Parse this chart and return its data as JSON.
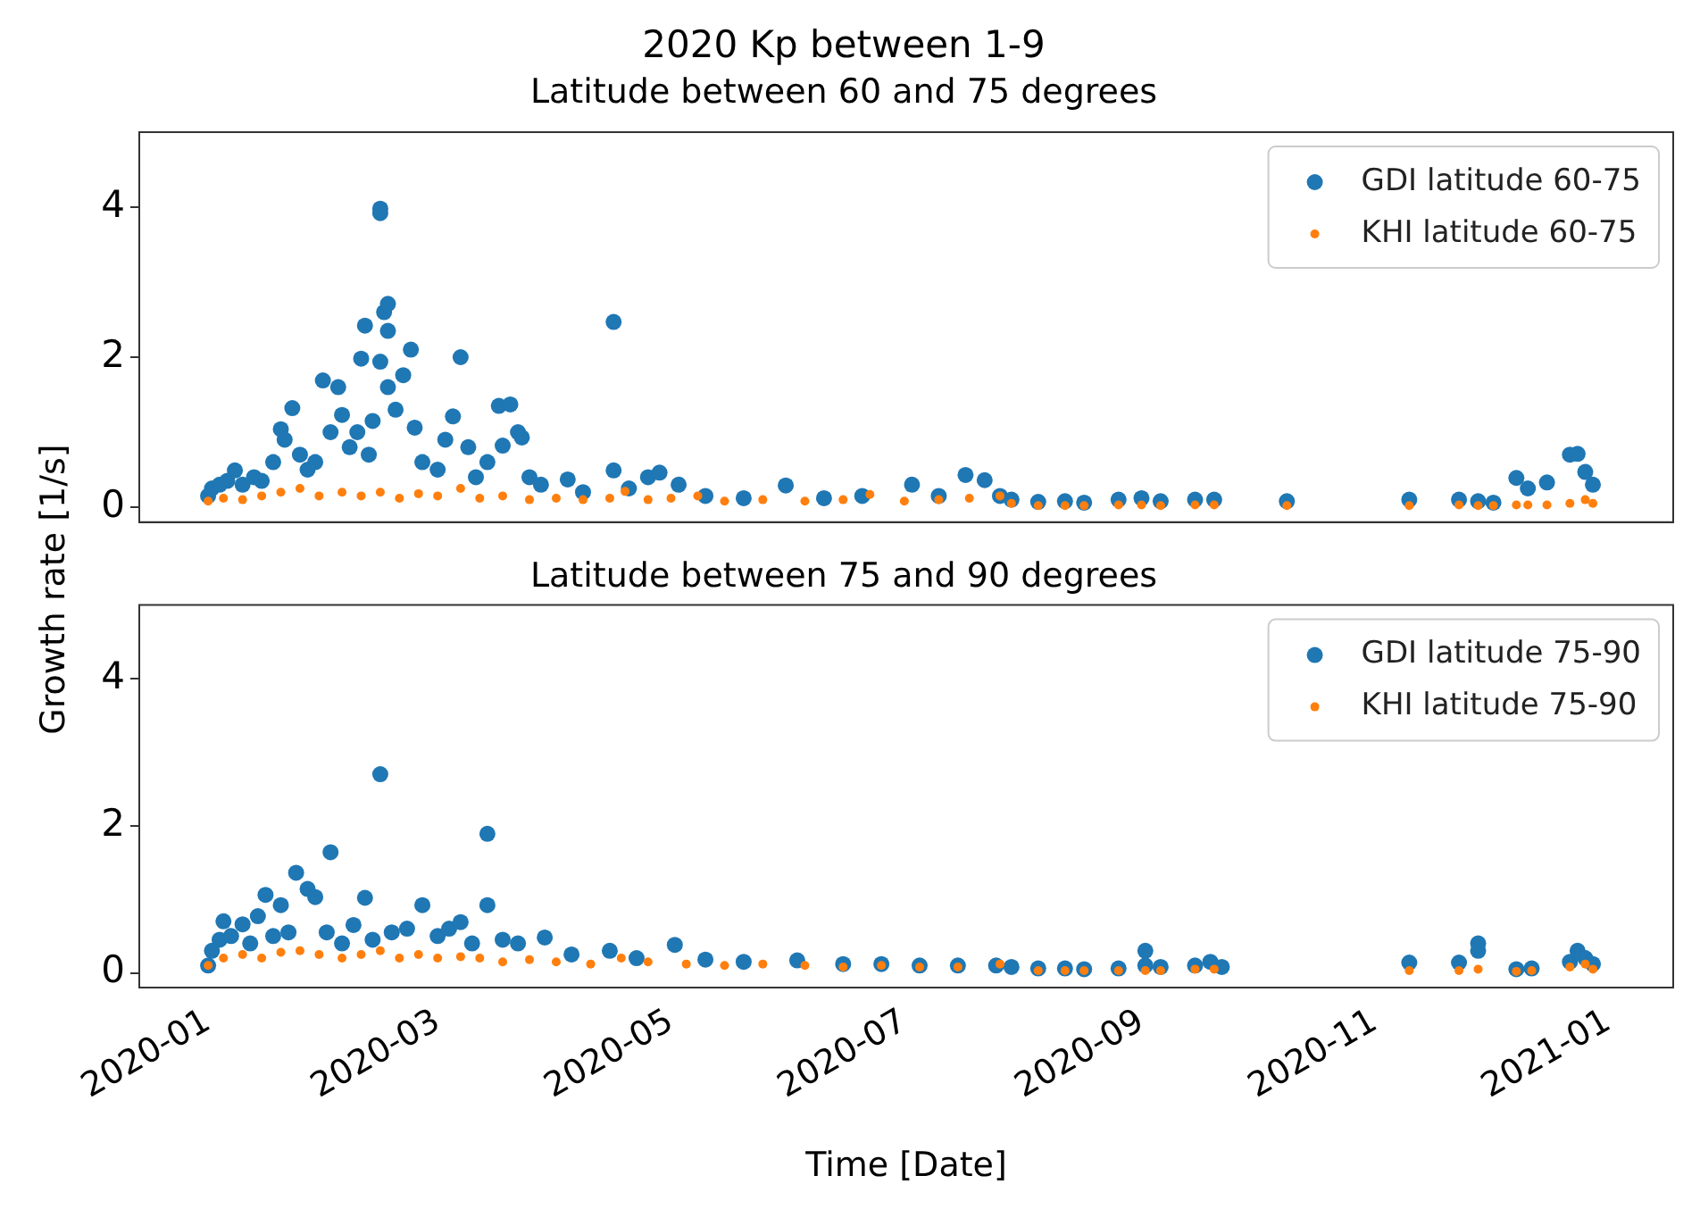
{
  "chart_data": [
    {
      "type": "scatter",
      "title": "2020 Kp between 1-9",
      "subtitle": "Latitude between 60 and 75 degrees",
      "ylabel": "Growth rate [1/s]",
      "xlim": [
        "2019-12-14",
        "2021-01-18"
      ],
      "xticks": [
        "2020-01",
        "2020-03",
        "2020-05",
        "2020-07",
        "2020-09",
        "2020-11",
        "2021-01"
      ],
      "ylim": [
        -0.2,
        5
      ],
      "yticks": [
        0,
        2,
        4
      ],
      "tick_labels": "y",
      "grid": false,
      "legend": "top right",
      "marker": "circle",
      "series": [
        {
          "name": "GDI latitude 60-75",
          "color": "#1f77b4",
          "x": [
            "2020-01-01",
            "2020-01-02",
            "2020-01-04",
            "2020-01-06",
            "2020-01-08",
            "2020-01-10",
            "2020-01-13",
            "2020-01-15",
            "2020-01-18",
            "2020-01-20",
            "2020-01-21",
            "2020-01-23",
            "2020-01-25",
            "2020-01-27",
            "2020-01-29",
            "2020-01-31",
            "2020-02-02",
            "2020-02-04",
            "2020-02-05",
            "2020-02-07",
            "2020-02-09",
            "2020-02-10",
            "2020-02-11",
            "2020-02-12",
            "2020-02-13",
            "2020-02-15",
            "2020-02-15",
            "2020-02-15",
            "2020-02-16",
            "2020-02-17",
            "2020-02-17",
            "2020-02-17",
            "2020-02-19",
            "2020-02-21",
            "2020-02-23",
            "2020-02-24",
            "2020-02-26",
            "2020-03-01",
            "2020-03-03",
            "2020-03-05",
            "2020-03-07",
            "2020-03-09",
            "2020-03-11",
            "2020-03-14",
            "2020-03-17",
            "2020-03-18",
            "2020-03-20",
            "2020-03-22",
            "2020-03-23",
            "2020-03-25",
            "2020-03-28",
            "2020-04-04",
            "2020-04-08",
            "2020-04-16",
            "2020-04-16",
            "2020-04-20",
            "2020-04-25",
            "2020-04-28",
            "2020-05-03",
            "2020-05-10",
            "2020-05-20",
            "2020-05-31",
            "2020-06-10",
            "2020-06-20",
            "2020-07-03",
            "2020-07-10",
            "2020-07-17",
            "2020-07-22",
            "2020-07-26",
            "2020-07-29",
            "2020-08-05",
            "2020-08-12",
            "2020-08-17",
            "2020-08-26",
            "2020-09-01",
            "2020-09-06",
            "2020-09-15",
            "2020-09-20",
            "2020-10-09",
            "2020-11-10",
            "2020-11-23",
            "2020-11-28",
            "2020-12-02",
            "2020-12-08",
            "2020-12-11",
            "2020-12-16",
            "2020-12-22",
            "2020-12-24",
            "2020-12-26",
            "2020-12-28"
          ],
          "values": [
            0.15,
            0.25,
            0.3,
            0.35,
            0.49,
            0.3,
            0.4,
            0.35,
            0.6,
            1.04,
            0.9,
            1.32,
            0.7,
            0.5,
            0.6,
            1.69,
            1.0,
            1.6,
            1.23,
            0.8,
            1.0,
            1.98,
            2.42,
            0.7,
            1.15,
            3.98,
            3.92,
            1.94,
            2.6,
            2.71,
            2.35,
            1.6,
            1.3,
            1.76,
            2.1,
            1.06,
            0.6,
            0.5,
            0.9,
            1.21,
            2.0,
            0.8,
            0.4,
            0.6,
            1.35,
            0.82,
            1.37,
            1.0,
            0.93,
            0.4,
            0.3,
            0.37,
            0.2,
            2.47,
            0.49,
            0.25,
            0.4,
            0.46,
            0.3,
            0.15,
            0.12,
            0.29,
            0.12,
            0.15,
            0.3,
            0.15,
            0.43,
            0.36,
            0.15,
            0.1,
            0.07,
            0.08,
            0.06,
            0.1,
            0.12,
            0.08,
            0.1,
            0.1,
            0.08,
            0.1,
            0.1,
            0.08,
            0.06,
            0.39,
            0.25,
            0.33,
            0.7,
            0.71,
            0.47,
            0.3
          ]
        },
        {
          "name": "KHI latitude 60-75",
          "color": "#ff7f0e",
          "x": [
            "2020-01-01",
            "2020-01-05",
            "2020-01-10",
            "2020-01-15",
            "2020-01-20",
            "2020-01-25",
            "2020-01-30",
            "2020-02-05",
            "2020-02-10",
            "2020-02-15",
            "2020-02-20",
            "2020-02-25",
            "2020-03-01",
            "2020-03-07",
            "2020-03-12",
            "2020-03-18",
            "2020-03-25",
            "2020-04-01",
            "2020-04-08",
            "2020-04-15",
            "2020-04-19",
            "2020-04-25",
            "2020-05-01",
            "2020-05-08",
            "2020-05-15",
            "2020-05-25",
            "2020-06-05",
            "2020-06-15",
            "2020-06-22",
            "2020-07-01",
            "2020-07-10",
            "2020-07-18",
            "2020-07-26",
            "2020-07-29",
            "2020-08-05",
            "2020-08-12",
            "2020-08-17",
            "2020-08-26",
            "2020-09-01",
            "2020-09-06",
            "2020-09-15",
            "2020-09-20",
            "2020-10-09",
            "2020-11-10",
            "2020-11-23",
            "2020-11-28",
            "2020-12-02",
            "2020-12-08",
            "2020-12-11",
            "2020-12-16",
            "2020-12-22",
            "2020-12-26",
            "2020-12-28"
          ],
          "values": [
            0.08,
            0.12,
            0.1,
            0.15,
            0.2,
            0.25,
            0.15,
            0.2,
            0.15,
            0.2,
            0.12,
            0.18,
            0.15,
            0.25,
            0.12,
            0.15,
            0.1,
            0.12,
            0.1,
            0.12,
            0.21,
            0.1,
            0.12,
            0.15,
            0.08,
            0.1,
            0.08,
            0.1,
            0.17,
            0.08,
            0.1,
            0.12,
            0.15,
            0.05,
            0.02,
            0.02,
            0.02,
            0.03,
            0.03,
            0.02,
            0.03,
            0.03,
            0.02,
            0.02,
            0.03,
            0.02,
            0.02,
            0.03,
            0.03,
            0.03,
            0.05,
            0.1,
            0.05
          ]
        }
      ]
    },
    {
      "type": "scatter",
      "title": "Latitude between 75 and 90 degrees",
      "xlabel": "Time [Date]",
      "xlim": [
        "2019-12-14",
        "2021-01-18"
      ],
      "xticks": [
        "2020-01",
        "2020-03",
        "2020-05",
        "2020-07",
        "2020-09",
        "2020-11",
        "2021-01"
      ],
      "ylim": [
        -0.2,
        5
      ],
      "yticks": [
        0,
        2,
        4
      ],
      "grid": false,
      "legend": "top right",
      "marker": "circle",
      "series": [
        {
          "name": "GDI latitude 75-90",
          "color": "#1f77b4",
          "x": [
            "2020-01-01",
            "2020-01-02",
            "2020-01-04",
            "2020-01-05",
            "2020-01-07",
            "2020-01-10",
            "2020-01-12",
            "2020-01-14",
            "2020-01-16",
            "2020-01-18",
            "2020-01-20",
            "2020-01-22",
            "2020-01-24",
            "2020-01-27",
            "2020-01-29",
            "2020-02-01",
            "2020-02-02",
            "2020-02-05",
            "2020-02-08",
            "2020-02-11",
            "2020-02-13",
            "2020-02-15",
            "2020-02-18",
            "2020-02-22",
            "2020-02-26",
            "2020-03-01",
            "2020-03-04",
            "2020-03-07",
            "2020-03-10",
            "2020-03-14",
            "2020-03-14",
            "2020-03-18",
            "2020-03-22",
            "2020-03-29",
            "2020-04-05",
            "2020-04-15",
            "2020-04-22",
            "2020-05-02",
            "2020-05-10",
            "2020-05-20",
            "2020-06-03",
            "2020-06-15",
            "2020-06-25",
            "2020-07-05",
            "2020-07-15",
            "2020-07-25",
            "2020-07-29",
            "2020-08-05",
            "2020-08-12",
            "2020-08-17",
            "2020-08-26",
            "2020-09-02",
            "2020-09-02",
            "2020-09-06",
            "2020-09-15",
            "2020-09-19",
            "2020-09-22",
            "2020-11-10",
            "2020-11-23",
            "2020-11-28",
            "2020-11-28",
            "2020-12-08",
            "2020-12-12",
            "2020-12-22",
            "2020-12-24",
            "2020-12-26",
            "2020-12-28"
          ],
          "values": [
            0.1,
            0.3,
            0.45,
            0.7,
            0.5,
            0.66,
            0.4,
            0.77,
            1.06,
            0.5,
            0.92,
            0.55,
            1.36,
            1.14,
            1.03,
            0.55,
            1.64,
            0.4,
            0.65,
            1.02,
            0.45,
            2.7,
            0.55,
            0.6,
            0.92,
            0.5,
            0.6,
            0.69,
            0.4,
            1.89,
            0.92,
            0.45,
            0.4,
            0.48,
            0.25,
            0.3,
            0.2,
            0.38,
            0.18,
            0.15,
            0.17,
            0.12,
            0.12,
            0.1,
            0.1,
            0.1,
            0.08,
            0.06,
            0.06,
            0.05,
            0.06,
            0.3,
            0.1,
            0.08,
            0.1,
            0.15,
            0.08,
            0.14,
            0.14,
            0.4,
            0.3,
            0.05,
            0.06,
            0.15,
            0.3,
            0.2,
            0.12
          ]
        },
        {
          "name": "KHI latitude 75-90",
          "color": "#ff7f0e",
          "x": [
            "2020-01-01",
            "2020-01-05",
            "2020-01-10",
            "2020-01-15",
            "2020-01-20",
            "2020-01-25",
            "2020-01-30",
            "2020-02-05",
            "2020-02-10",
            "2020-02-15",
            "2020-02-20",
            "2020-02-25",
            "2020-03-01",
            "2020-03-07",
            "2020-03-12",
            "2020-03-18",
            "2020-03-25",
            "2020-04-01",
            "2020-04-10",
            "2020-04-18",
            "2020-04-25",
            "2020-05-05",
            "2020-05-15",
            "2020-05-25",
            "2020-06-05",
            "2020-06-15",
            "2020-06-25",
            "2020-07-05",
            "2020-07-15",
            "2020-07-26",
            "2020-08-05",
            "2020-08-12",
            "2020-08-17",
            "2020-08-26",
            "2020-09-02",
            "2020-09-06",
            "2020-09-15",
            "2020-09-20",
            "2020-11-10",
            "2020-11-23",
            "2020-11-28",
            "2020-12-08",
            "2020-12-12",
            "2020-12-22",
            "2020-12-26",
            "2020-12-28"
          ],
          "values": [
            0.1,
            0.2,
            0.25,
            0.2,
            0.28,
            0.3,
            0.25,
            0.2,
            0.25,
            0.3,
            0.2,
            0.25,
            0.2,
            0.22,
            0.2,
            0.15,
            0.18,
            0.15,
            0.12,
            0.2,
            0.15,
            0.12,
            0.1,
            0.12,
            0.1,
            0.08,
            0.1,
            0.08,
            0.08,
            0.12,
            0.03,
            0.03,
            0.03,
            0.03,
            0.03,
            0.03,
            0.05,
            0.05,
            0.03,
            0.03,
            0.05,
            0.02,
            0.03,
            0.08,
            0.12,
            0.05
          ]
        }
      ]
    }
  ]
}
